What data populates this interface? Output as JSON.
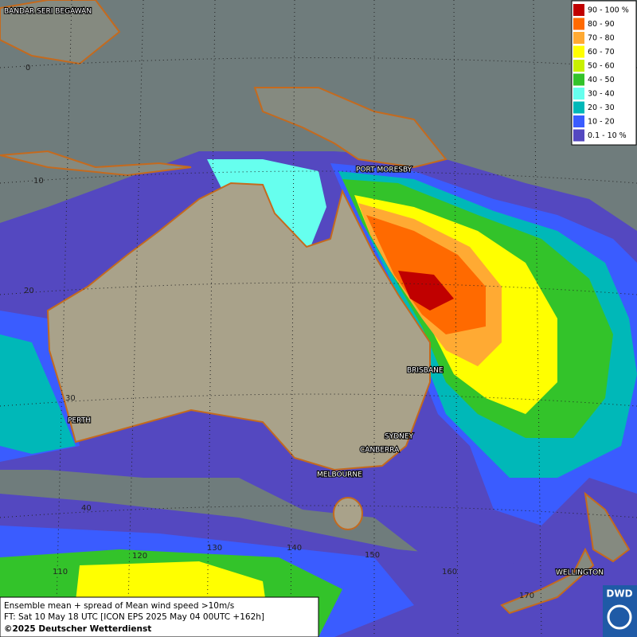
{
  "legend": [
    {
      "label": "90 - 100 %",
      "color": "#c00000"
    },
    {
      "label": "80 - 90",
      "color": "#ff6a00"
    },
    {
      "label": "70 - 80",
      "color": "#ffaa33"
    },
    {
      "label": "60 - 70",
      "color": "#ffff00"
    },
    {
      "label": "50 - 60",
      "color": "#c8f000"
    },
    {
      "label": "40 - 50",
      "color": "#33c32a"
    },
    {
      "label": "30 - 40",
      "color": "#66ffee"
    },
    {
      "label": "20 - 30",
      "color": "#00b8b8"
    },
    {
      "label": "10 - 20",
      "color": "#3a5cff"
    },
    {
      "label": "0.1 - 10 %",
      "color": "#5448c0"
    }
  ],
  "places": [
    "BANDAR SERI BEGAWAN",
    "PORT MORESBY",
    "BRISBANE",
    "SYDNEY",
    "CANBERRA",
    "MELBOURNE",
    "PERTH",
    "WELLINGTON"
  ],
  "lat_labels": [
    "0",
    "10",
    "20",
    "30",
    "40"
  ],
  "lon_labels": [
    "110",
    "120",
    "130",
    "140",
    "150",
    "160",
    "170"
  ],
  "caption": {
    "line1": "Ensemble mean + spread of Mean wind speed >10m/s",
    "line2": "FT: Sat 10 May 18 UTC [ICON EPS 2025 May 04 00UTC +162h]",
    "copyright": "©2025 Deutscher Wetterdienst"
  },
  "logo": "DWD"
}
